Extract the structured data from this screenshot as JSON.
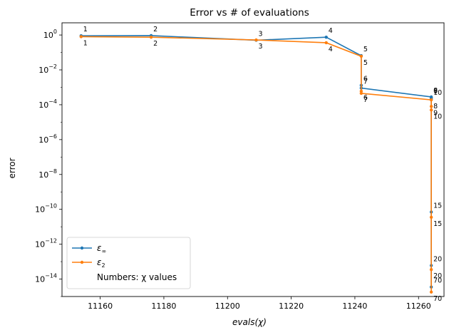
{
  "chart_data": {
    "type": "line",
    "title": "Error vs # of evaluations",
    "xlabel": "evals(χ)",
    "ylabel": "error",
    "yscale": "log",
    "xlim": [
      11148,
      11268
    ],
    "ylim": [
      1e-15,
      5
    ],
    "xticks": [
      11160,
      11180,
      11200,
      11220,
      11240,
      11260
    ],
    "yticks": [
      1,
      0.01,
      0.0001,
      1e-06,
      1e-08,
      1e-10,
      1e-12,
      1e-14
    ],
    "ytick_labels": [
      {
        "base": "10",
        "exp": "0"
      },
      {
        "base": "10",
        "exp": "−2"
      },
      {
        "base": "10",
        "exp": "−4"
      },
      {
        "base": "10",
        "exp": "−6"
      },
      {
        "base": "10",
        "exp": "−8"
      },
      {
        "base": "10",
        "exp": "−10"
      },
      {
        "base": "10",
        "exp": "−12"
      },
      {
        "base": "10",
        "exp": "−14"
      }
    ],
    "grid": false,
    "legend_position": "bottom-left",
    "series": [
      {
        "name": "ε∞",
        "color": "#1f77b4",
        "points": [
          {
            "x": 11154,
            "y": 0.9,
            "label": "1"
          },
          {
            "x": 11176,
            "y": 0.92,
            "label": "2"
          },
          {
            "x": 11209,
            "y": 0.5,
            "label": "3"
          },
          {
            "x": 11231,
            "y": 0.75,
            "label": "4"
          },
          {
            "x": 11242,
            "y": 0.065,
            "label": "5"
          },
          {
            "x": 11242,
            "y": 0.0013,
            "label": "6"
          },
          {
            "x": 11242,
            "y": 0.0009,
            "label": "7"
          },
          {
            "x": 11264,
            "y": 0.00028,
            "label": "8"
          },
          {
            "x": 11264,
            "y": 0.00025,
            "label": "9"
          },
          {
            "x": 11264,
            "y": 0.00021,
            "label": "10"
          },
          {
            "x": 11264,
            "y": 7e-11,
            "label": "15"
          },
          {
            "x": 11264,
            "y": 6e-14,
            "label": "20"
          },
          {
            "x": 11264,
            "y": 3.5e-15,
            "label": "70"
          }
        ]
      },
      {
        "name": "ε2",
        "color": "#ff7f0e",
        "points": [
          {
            "x": 11154,
            "y": 0.8,
            "label": "1"
          },
          {
            "x": 11176,
            "y": 0.75,
            "label": "2"
          },
          {
            "x": 11209,
            "y": 0.52,
            "label": "3"
          },
          {
            "x": 11231,
            "y": 0.36,
            "label": "4"
          },
          {
            "x": 11242,
            "y": 0.06,
            "label": "5"
          },
          {
            "x": 11242,
            "y": 0.0006,
            "label": "6"
          },
          {
            "x": 11242,
            "y": 0.00045,
            "label": "7"
          },
          {
            "x": 11264,
            "y": 0.00019,
            "label": "8"
          },
          {
            "x": 11264,
            "y": 8e-05,
            "label": "9"
          },
          {
            "x": 11264,
            "y": 5e-05,
            "label": "10"
          },
          {
            "x": 11264,
            "y": 3.5e-11,
            "label": "15"
          },
          {
            "x": 11264,
            "y": 3.5e-14,
            "label": "20"
          },
          {
            "x": 11264,
            "y": 1.8e-15,
            "label": "70"
          }
        ]
      }
    ],
    "legend": {
      "entries": [
        {
          "symbol": "ε",
          "sub": "∞",
          "color": "#1f77b4"
        },
        {
          "symbol": "ε",
          "sub": "2",
          "color": "#ff7f0e"
        }
      ],
      "note": "Numbers: χ values"
    }
  }
}
